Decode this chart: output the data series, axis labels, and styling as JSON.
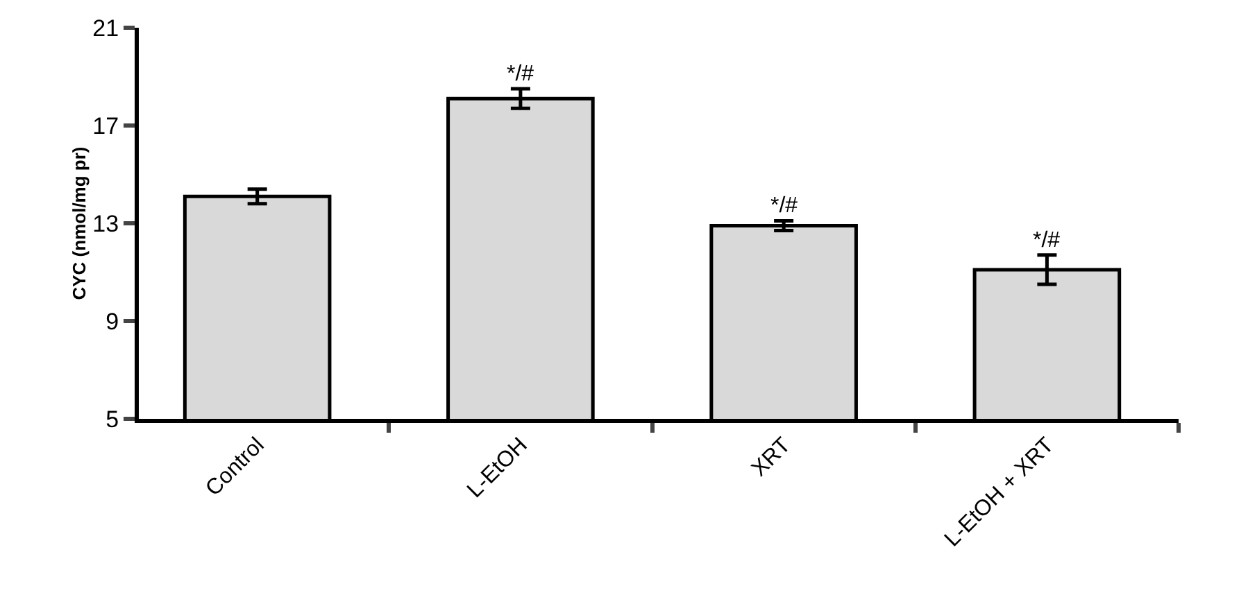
{
  "chart_data": {
    "type": "bar",
    "ylabel": "CYC (nmol/mg pr)",
    "categories": [
      "Control",
      "L-EtOH",
      "XRT",
      "L-EtOH + XRT"
    ],
    "values": [
      14.1,
      18.1,
      12.9,
      11.1
    ],
    "errors": [
      0.3,
      0.4,
      0.2,
      0.6
    ],
    "color": "#d9d9d9",
    "ylim": [
      5,
      21
    ],
    "yticks": [
      5,
      9,
      13,
      17,
      21
    ],
    "grid": false,
    "legend": false,
    "annotations": [
      {
        "text": "*/#",
        "x": "L-EtOH",
        "y": 18.5
      },
      {
        "text": "*/#",
        "x": "XRT",
        "y": 13.1
      },
      {
        "text": "*/#",
        "x": "L-EtOH + XRT",
        "y": 11.7
      }
    ]
  }
}
